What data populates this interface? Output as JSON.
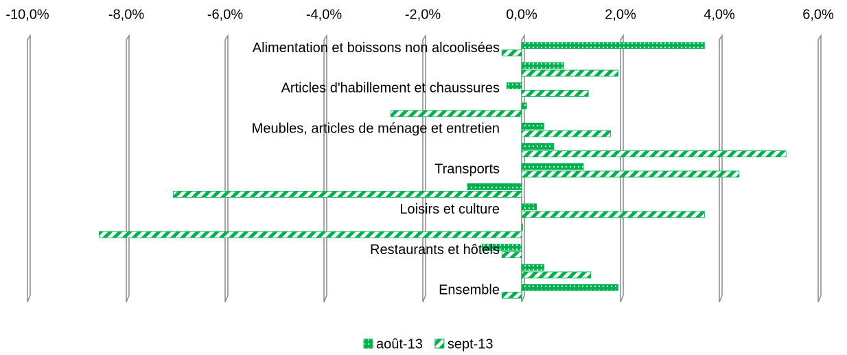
{
  "chart_data": {
    "type": "hbar",
    "categories": [
      "Alimentation et boissons non alcoolisées",
      null,
      "Articles d'habillement et chaussures",
      null,
      "Meubles, articles de ménage et entretien",
      null,
      "Transports",
      null,
      "Loisirs et culture",
      null,
      "Restaurants et hôtels",
      null,
      "Ensemble"
    ],
    "series": [
      {
        "name": "août-13",
        "color": "#00b050",
        "values": [
          3.7,
          0.85,
          -0.3,
          0.1,
          0.45,
          0.65,
          1.25,
          -1.1,
          0.3,
          0.02,
          -0.8,
          0.45,
          1.95
        ]
      },
      {
        "name": "sept-13",
        "color": "#00b050",
        "values": [
          -0.4,
          1.95,
          1.35,
          -2.65,
          1.8,
          5.35,
          4.4,
          -7.05,
          3.7,
          -8.55,
          -0.4,
          1.4,
          -0.4
        ]
      }
    ],
    "xlim": [
      -10,
      6
    ],
    "xticks": [
      {
        "value": -10,
        "label": "-10,0%"
      },
      {
        "value": -8,
        "label": "-8,0%"
      },
      {
        "value": -6,
        "label": "-6,0%"
      },
      {
        "value": -4,
        "label": "-4,0%"
      },
      {
        "value": -2,
        "label": "-2,0%"
      },
      {
        "value": 0,
        "label": "0,0%"
      },
      {
        "value": 2,
        "label": "2,0%"
      },
      {
        "value": 4,
        "label": "4,0%"
      },
      {
        "value": 6,
        "label": "6,0%"
      }
    ],
    "grid": true,
    "legend": "bottom"
  }
}
